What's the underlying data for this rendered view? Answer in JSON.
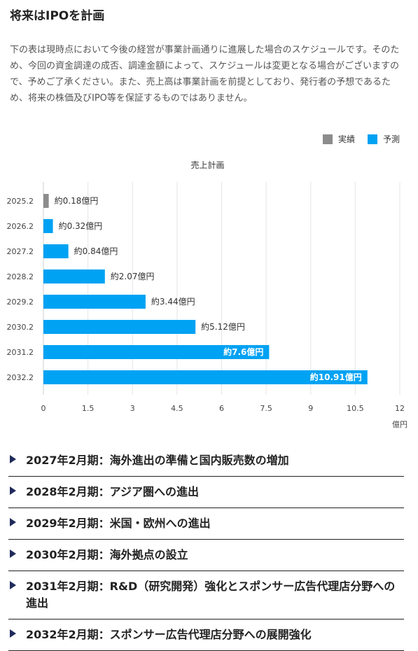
{
  "header": {
    "title": "将来はIPOを計画",
    "description": "下の表は現時点において今後の経営が事業計画通りに進展した場合のスケジュールです。そのため、今回の資金調達の成否、調達金額によって、スケジュールは変更となる場合がございますので、予めご了承ください。また、売上高は事業計画を前提としており、発行者の予想であるため、将来の株価及びIPO等を保証するものではありません。"
  },
  "legend": [
    {
      "label": "実績",
      "color": "#8c8c8c"
    },
    {
      "label": "予測",
      "color": "#00a2f3"
    }
  ],
  "chart_data": {
    "type": "bar",
    "orientation": "horizontal",
    "title": "売上計画",
    "unit_label": "億円",
    "categories": [
      "2025.2",
      "2026.2",
      "2027.2",
      "2028.2",
      "2029.2",
      "2030.2",
      "2031.2",
      "2032.2"
    ],
    "values": [
      0.18,
      0.32,
      0.84,
      2.07,
      3.44,
      5.12,
      7.6,
      10.91
    ],
    "labels": [
      "約0.18億円",
      "約0.32億円",
      "約0.84億円",
      "約2.07億円",
      "約3.44億円",
      "約5.12億円",
      "約7.6億円",
      "約10.91億円"
    ],
    "types": [
      "実績",
      "予測",
      "予測",
      "予測",
      "予測",
      "予測",
      "予測",
      "予測"
    ],
    "label_inside": [
      false,
      false,
      false,
      false,
      false,
      false,
      true,
      true
    ],
    "xlim": [
      0,
      12
    ],
    "xticks": [
      "0",
      "1.5",
      "3",
      "4.5",
      "6",
      "7.5",
      "9",
      "10.5",
      "12"
    ],
    "grid": true
  },
  "milestones": [
    "2027年2月期：海外進出の準備と国内販売数の増加",
    "2028年2月期：アジア圏への進出",
    "2029年2月期：米国・欧州への進出",
    "2030年2月期：海外拠点の設立",
    "2031年2月期：R&D（研究開発）強化とスポンサー広告代理店分野への進出",
    "2032年2月期：スポンサー広告代理店分野への展開強化"
  ]
}
